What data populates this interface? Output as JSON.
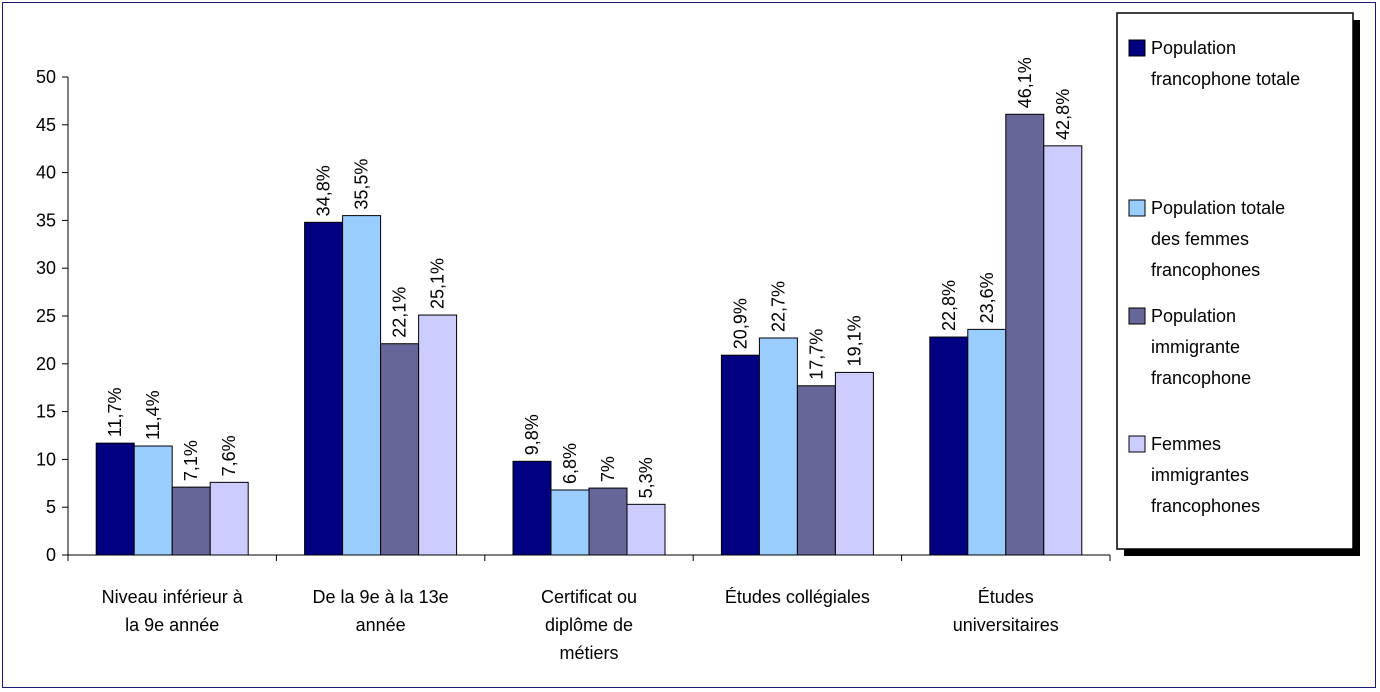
{
  "chart_data": {
    "type": "bar",
    "title": "",
    "xlabel": "",
    "ylabel": "",
    "ylim": [
      0,
      50
    ],
    "yticks": [
      0,
      5,
      10,
      15,
      20,
      25,
      30,
      35,
      40,
      45,
      50
    ],
    "grid": false,
    "legend_position": "right",
    "categories": [
      [
        "Niveau inférieur à",
        "la 9e année"
      ],
      [
        "De la 9e à la 13e",
        "année"
      ],
      [
        "Certificat ou",
        "diplôme de",
        "métiers"
      ],
      [
        "Études collégiales"
      ],
      [
        "Études",
        "universitaires"
      ]
    ],
    "series": [
      {
        "name": [
          "Population",
          "francophone totale"
        ],
        "color": "#000080",
        "values": [
          11.7,
          34.8,
          9.8,
          20.9,
          22.8
        ],
        "labels": [
          "11,7%",
          "34,8%",
          "9,8%",
          "20,9%",
          "22,8%"
        ]
      },
      {
        "name": [
          "Population totale",
          "des femmes",
          "francophones"
        ],
        "color": "#99ccff",
        "values": [
          11.4,
          35.5,
          6.8,
          22.7,
          23.6
        ],
        "labels": [
          "11,4%",
          "35,5%",
          "6,8%",
          "22,7%",
          "23,6%"
        ]
      },
      {
        "name": [
          "Population",
          "immigrante",
          "francophone"
        ],
        "color": "#666699",
        "values": [
          7.1,
          22.1,
          7.0,
          17.7,
          46.1
        ],
        "labels": [
          "7,1%",
          "22,1%",
          "7%",
          "17,7%",
          "46,1%"
        ]
      },
      {
        "name": [
          "Femmes",
          "immigrantes",
          "francophones"
        ],
        "color": "#ccccff",
        "values": [
          7.6,
          25.1,
          5.3,
          19.1,
          42.8
        ],
        "labels": [
          "7,6%",
          "25,1%",
          "5,3%",
          "19,1%",
          "42,8%"
        ]
      }
    ]
  }
}
